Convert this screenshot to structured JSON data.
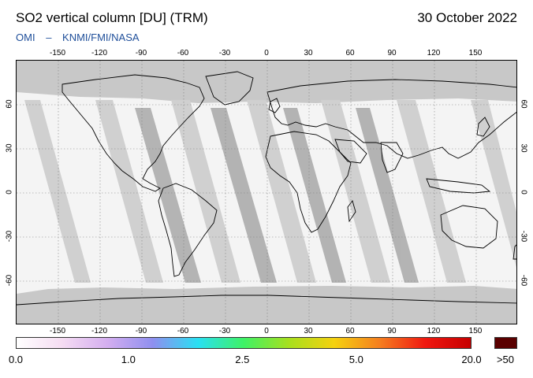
{
  "header": {
    "title": "SO2 vertical column [DU] (TRM)",
    "date": "30 October 2022",
    "credit_left": "OMI",
    "credit_sep": "–",
    "credit_right": "KNMI/FMI/NASA"
  },
  "map": {
    "projection": "equirectangular",
    "lon_range": [
      -180,
      180
    ],
    "lat_range": [
      -90,
      90
    ],
    "lon_ticks": [
      "-150",
      "-120",
      "-90",
      "-60",
      "-30",
      "0",
      "30",
      "60",
      "90",
      "120",
      "150"
    ],
    "lat_ticks": [
      "60",
      "30",
      "0",
      "-30",
      "-60"
    ],
    "grid": true,
    "colors": {
      "no_data": "#c8c8c8",
      "no_data_dark": "#9a9a9a",
      "background": "#f4f4f4",
      "coastline": "#000000",
      "grid": "#808080"
    }
  },
  "colorbar": {
    "labels": [
      "0.0",
      "1.0",
      "2.5",
      "5.0",
      "20.0",
      ">50"
    ],
    "label_values": [
      0.0,
      1.0,
      2.5,
      5.0,
      20.0
    ],
    "stops": [
      "#ffffff",
      "#f5dcf2",
      "#d4aef0",
      "#8f8ff0",
      "#29e0f2",
      "#3ef266",
      "#a8e01d",
      "#f5d10f",
      "#f57e1f",
      "#f01810",
      "#c60000"
    ],
    "overflow_color": "#5a0000"
  }
}
